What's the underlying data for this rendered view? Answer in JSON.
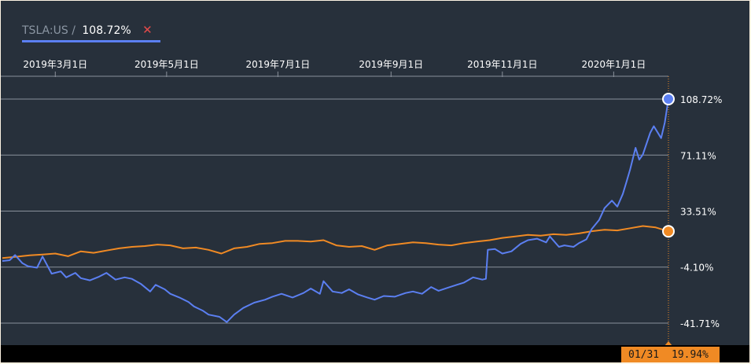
{
  "legend_tab": {
    "symbol": "TSLA:US",
    "separator": "/",
    "value": "108.72%",
    "close_icon": "close-icon"
  },
  "colors": {
    "background": "#27303b",
    "tsla_line": "#5b7ff1",
    "benchmark_line": "#f08a24",
    "grid": "#8a919b"
  },
  "chart_data": {
    "type": "line",
    "x_tick_labels": [
      "2019年3月1日",
      "2019年5月1日",
      "2019年7月1日",
      "2019年9月1日",
      "2019年11月1日",
      "2020年1月1日"
    ],
    "x_ticks": [
      "2019-03-01",
      "2019-05-01",
      "2019-07-01",
      "2019-09-01",
      "2019-11-01",
      "2020-01-01"
    ],
    "xlim": [
      "2019-01-31",
      "2020-01-31"
    ],
    "y_tick_labels": [
      "108.72%",
      "71.11%",
      "33.51%",
      "-4.10%",
      "-41.71%"
    ],
    "y_ticks": [
      108.72,
      71.11,
      33.51,
      -4.1,
      -41.71
    ],
    "ylim": [
      -50.1,
      117.1
    ],
    "grid": "horizontal",
    "crosshair": {
      "date_label": "01/31",
      "value_label": "19.94%"
    },
    "series": [
      {
        "key": "tsla",
        "color": "#5b7ff1",
        "end_value": 108.72,
        "points": [
          [
            "2019-01-31",
            0.0
          ],
          [
            "2019-02-04",
            0.5
          ],
          [
            "2019-02-07",
            4.0
          ],
          [
            "2019-02-11",
            -1.5
          ],
          [
            "2019-02-14",
            -3.5
          ],
          [
            "2019-02-19",
            -4.5
          ],
          [
            "2019-02-22",
            3.0
          ],
          [
            "2019-02-27",
            -8.5
          ],
          [
            "2019-03-04",
            -7.0
          ],
          [
            "2019-03-07",
            -11.0
          ],
          [
            "2019-03-12",
            -8.0
          ],
          [
            "2019-03-15",
            -11.5
          ],
          [
            "2019-03-20",
            -13.0
          ],
          [
            "2019-03-25",
            -10.5
          ],
          [
            "2019-03-29",
            -8.0
          ],
          [
            "2019-04-03",
            -12.5
          ],
          [
            "2019-04-08",
            -11.0
          ],
          [
            "2019-04-12",
            -12.0
          ],
          [
            "2019-04-17",
            -15.5
          ],
          [
            "2019-04-22",
            -20.5
          ],
          [
            "2019-04-25",
            -16.0
          ],
          [
            "2019-04-30",
            -19.0
          ],
          [
            "2019-05-03",
            -22.0
          ],
          [
            "2019-05-08",
            -24.5
          ],
          [
            "2019-05-13",
            -27.5
          ],
          [
            "2019-05-16",
            -30.5
          ],
          [
            "2019-05-21",
            -33.5
          ],
          [
            "2019-05-24",
            -36.0
          ],
          [
            "2019-05-30",
            -37.5
          ],
          [
            "2019-06-03",
            -41.0
          ],
          [
            "2019-06-07",
            -36.0
          ],
          [
            "2019-06-12",
            -31.5
          ],
          [
            "2019-06-18",
            -28.0
          ],
          [
            "2019-06-24",
            -26.0
          ],
          [
            "2019-06-28",
            -24.0
          ],
          [
            "2019-07-03",
            -22.0
          ],
          [
            "2019-07-09",
            -24.5
          ],
          [
            "2019-07-15",
            -21.5
          ],
          [
            "2019-07-19",
            -18.5
          ],
          [
            "2019-07-24",
            -22.0
          ],
          [
            "2019-07-26",
            -13.5
          ],
          [
            "2019-07-31",
            -20.5
          ],
          [
            "2019-08-05",
            -21.5
          ],
          [
            "2019-08-09",
            -19.0
          ],
          [
            "2019-08-14",
            -22.5
          ],
          [
            "2019-08-19",
            -24.5
          ],
          [
            "2019-08-23",
            -26.0
          ],
          [
            "2019-08-28",
            -23.5
          ],
          [
            "2019-09-03",
            -24.0
          ],
          [
            "2019-09-09",
            -21.5
          ],
          [
            "2019-09-13",
            -20.5
          ],
          [
            "2019-09-18",
            -22.0
          ],
          [
            "2019-09-23",
            -17.5
          ],
          [
            "2019-09-27",
            -20.0
          ],
          [
            "2019-10-02",
            -18.0
          ],
          [
            "2019-10-07",
            -16.0
          ],
          [
            "2019-10-11",
            -14.5
          ],
          [
            "2019-10-16",
            -11.0
          ],
          [
            "2019-10-21",
            -12.5
          ],
          [
            "2019-10-23",
            -12.0
          ],
          [
            "2019-10-24",
            7.5
          ],
          [
            "2019-10-28",
            8.0
          ],
          [
            "2019-11-01",
            5.0
          ],
          [
            "2019-11-06",
            6.5
          ],
          [
            "2019-11-11",
            11.5
          ],
          [
            "2019-11-15",
            14.0
          ],
          [
            "2019-11-20",
            15.0
          ],
          [
            "2019-11-25",
            12.5
          ],
          [
            "2019-11-27",
            16.5
          ],
          [
            "2019-12-02",
            9.5
          ],
          [
            "2019-12-05",
            10.5
          ],
          [
            "2019-12-10",
            9.5
          ],
          [
            "2019-12-13",
            12.0
          ],
          [
            "2019-12-17",
            14.5
          ],
          [
            "2019-12-20",
            21.5
          ],
          [
            "2019-12-24",
            27.5
          ],
          [
            "2019-12-27",
            35.5
          ],
          [
            "2019-12-31",
            40.5
          ],
          [
            "2020-01-03",
            36.5
          ],
          [
            "2020-01-06",
            45.0
          ],
          [
            "2020-01-08",
            53.0
          ],
          [
            "2020-01-10",
            61.5
          ],
          [
            "2020-01-13",
            76.0
          ],
          [
            "2020-01-15",
            68.0
          ],
          [
            "2020-01-17",
            71.5
          ],
          [
            "2020-01-21",
            86.0
          ],
          [
            "2020-01-23",
            90.5
          ],
          [
            "2020-01-27",
            82.5
          ],
          [
            "2020-01-29",
            93.0
          ],
          [
            "2020-01-31",
            108.72
          ]
        ]
      },
      {
        "key": "benchmark",
        "color": "#f08a24",
        "end_value": 19.94,
        "points": [
          [
            "2019-01-31",
            2.0
          ],
          [
            "2019-02-07",
            2.8
          ],
          [
            "2019-02-15",
            3.8
          ],
          [
            "2019-02-22",
            4.3
          ],
          [
            "2019-03-01",
            5.0
          ],
          [
            "2019-03-08",
            3.2
          ],
          [
            "2019-03-15",
            6.5
          ],
          [
            "2019-03-22",
            5.5
          ],
          [
            "2019-03-29",
            7.0
          ],
          [
            "2019-04-05",
            8.5
          ],
          [
            "2019-04-12",
            9.5
          ],
          [
            "2019-04-19",
            10.0
          ],
          [
            "2019-04-26",
            11.0
          ],
          [
            "2019-05-03",
            10.5
          ],
          [
            "2019-05-10",
            8.5
          ],
          [
            "2019-05-17",
            9.0
          ],
          [
            "2019-05-24",
            7.5
          ],
          [
            "2019-05-31",
            5.0
          ],
          [
            "2019-06-07",
            8.5
          ],
          [
            "2019-06-14",
            9.5
          ],
          [
            "2019-06-21",
            11.5
          ],
          [
            "2019-06-28",
            12.0
          ],
          [
            "2019-07-05",
            13.5
          ],
          [
            "2019-07-12",
            13.5
          ],
          [
            "2019-07-19",
            13.0
          ],
          [
            "2019-07-26",
            14.0
          ],
          [
            "2019-08-02",
            10.5
          ],
          [
            "2019-08-09",
            9.5
          ],
          [
            "2019-08-16",
            10.0
          ],
          [
            "2019-08-23",
            7.5
          ],
          [
            "2019-08-30",
            10.5
          ],
          [
            "2019-09-06",
            11.5
          ],
          [
            "2019-09-13",
            12.5
          ],
          [
            "2019-09-20",
            12.0
          ],
          [
            "2019-09-27",
            11.0
          ],
          [
            "2019-10-04",
            10.5
          ],
          [
            "2019-10-11",
            12.0
          ],
          [
            "2019-10-18",
            13.0
          ],
          [
            "2019-10-25",
            14.0
          ],
          [
            "2019-11-01",
            15.5
          ],
          [
            "2019-11-08",
            16.5
          ],
          [
            "2019-11-15",
            17.5
          ],
          [
            "2019-11-22",
            17.0
          ],
          [
            "2019-11-29",
            18.0
          ],
          [
            "2019-12-06",
            17.5
          ],
          [
            "2019-12-13",
            18.5
          ],
          [
            "2019-12-20",
            20.0
          ],
          [
            "2019-12-27",
            21.0
          ],
          [
            "2020-01-03",
            20.5
          ],
          [
            "2020-01-10",
            22.0
          ],
          [
            "2020-01-17",
            23.5
          ],
          [
            "2020-01-24",
            22.5
          ],
          [
            "2020-01-31",
            19.94
          ]
        ]
      }
    ]
  }
}
